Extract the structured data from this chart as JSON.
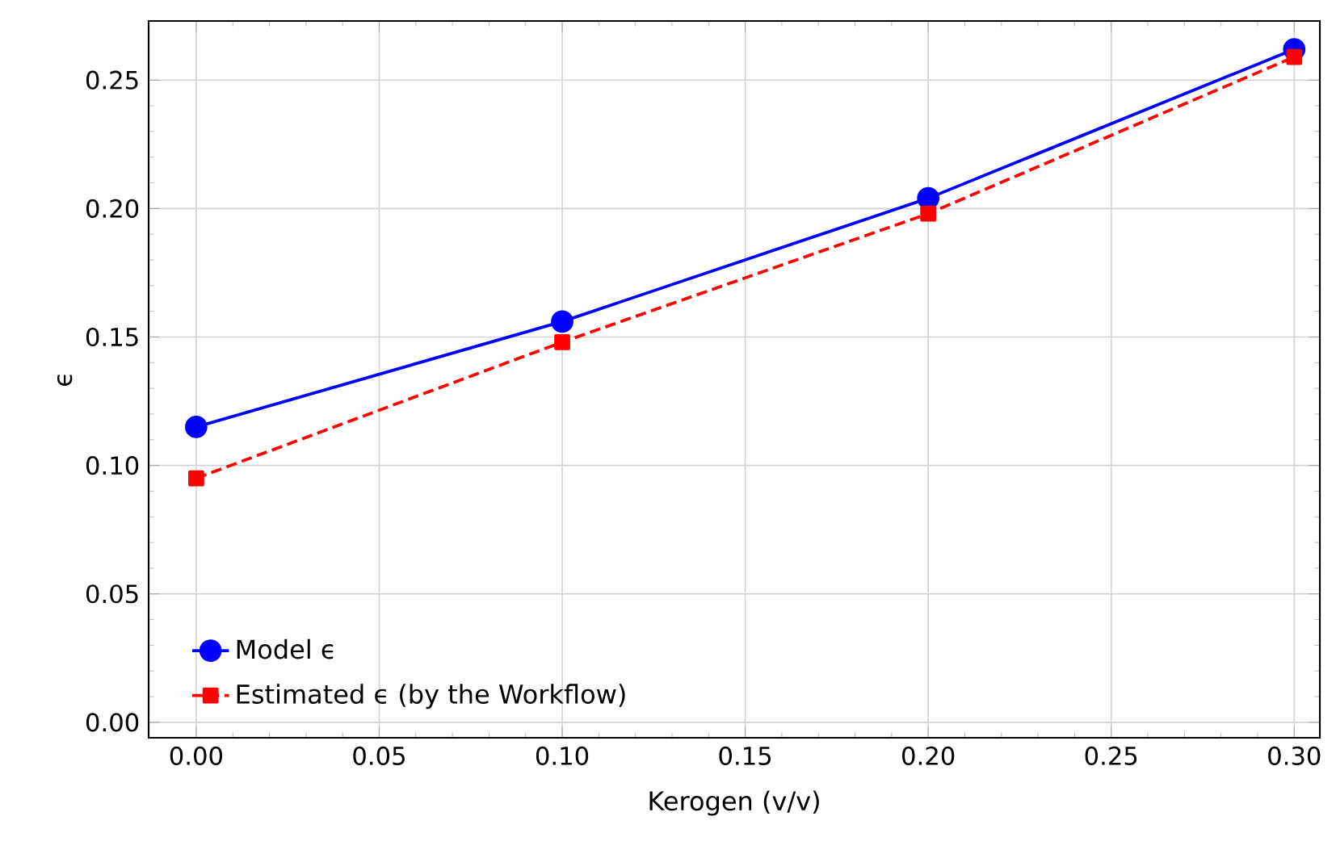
{
  "chart_data": {
    "type": "line",
    "xlabel": "Kerogen (v/v)",
    "ylabel": "ϵ",
    "x": [
      0.0,
      0.1,
      0.2,
      0.3
    ],
    "series": [
      {
        "name": "Model ϵ",
        "color": "#0000ff",
        "marker": "circle",
        "line_style": "solid",
        "values": [
          0.115,
          0.156,
          0.204,
          0.262
        ]
      },
      {
        "name": "Estimated ϵ (by the Workflow)",
        "color": "#ff0000",
        "marker": "square",
        "line_style": "dashed",
        "values": [
          0.095,
          0.148,
          0.198,
          0.259
        ]
      }
    ],
    "xlim": [
      -0.013,
      0.307
    ],
    "ylim": [
      -0.006,
      0.273
    ],
    "xticks": [
      {
        "value": 0.0,
        "label": "0.00"
      },
      {
        "value": 0.05,
        "label": "0.05"
      },
      {
        "value": 0.1,
        "label": "0.10"
      },
      {
        "value": 0.15,
        "label": "0.15"
      },
      {
        "value": 0.2,
        "label": "0.20"
      },
      {
        "value": 0.25,
        "label": "0.25"
      },
      {
        "value": 0.3,
        "label": "0.30"
      }
    ],
    "yticks": [
      {
        "value": 0.0,
        "label": "0.00"
      },
      {
        "value": 0.05,
        "label": "0.05"
      },
      {
        "value": 0.1,
        "label": "0.10"
      },
      {
        "value": 0.15,
        "label": "0.15"
      },
      {
        "value": 0.2,
        "label": "0.20"
      },
      {
        "value": 0.25,
        "label": "0.25"
      }
    ],
    "grid": true,
    "legend": "bottom left"
  }
}
